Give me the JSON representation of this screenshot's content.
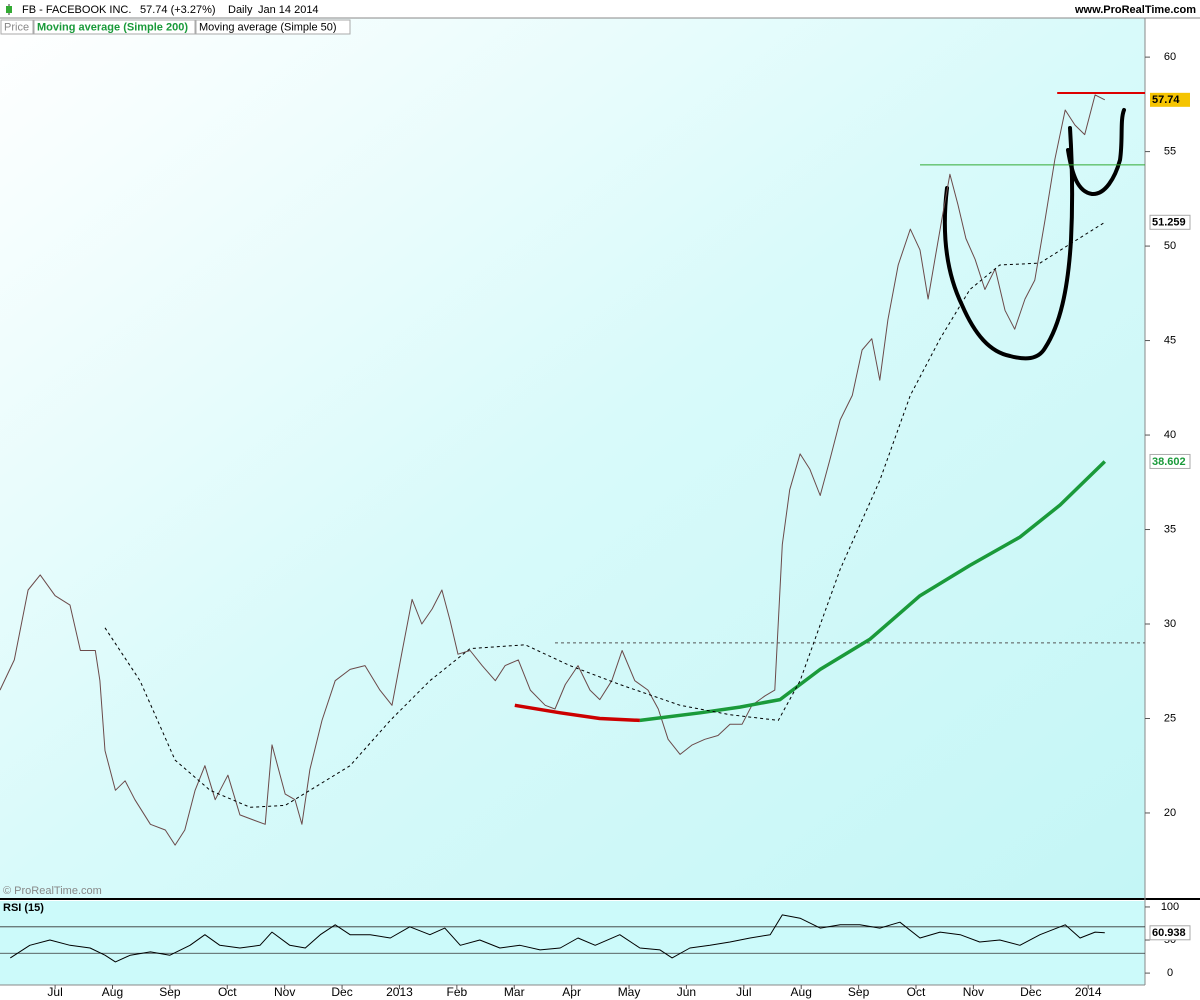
{
  "header": {
    "title": "FB - FACEBOOK INC.",
    "quote": "57.74 (+3.27%)",
    "period": "Daily",
    "date": "Jan 14 2014",
    "site": "www.ProRealTime.com",
    "watermark": "© ProRealTime.com"
  },
  "chart_data": [
    {
      "type": "line",
      "xlim": [
        -0.96,
        18.99
      ],
      "ylim": [
        15.5,
        62.07
      ],
      "yticks": [
        20,
        25,
        30,
        35,
        40,
        45,
        50,
        55,
        60
      ],
      "series": [
        {
          "name": "Price",
          "color": "#6b4a4a",
          "x": [
            -0.96,
            -0.71,
            -0.47,
            -0.26,
            0,
            0.26,
            0.44,
            0.7,
            0.78,
            0.87,
            1.05,
            1.22,
            1.39,
            1.66,
            1.92,
            2.09,
            2.26,
            2.44,
            2.61,
            2.79,
            3.01,
            3.22,
            3.48,
            3.66,
            3.78,
            4.01,
            4.18,
            4.3,
            4.44,
            4.65,
            4.88,
            5.14,
            5.4,
            5.66,
            5.87,
            6.05,
            6.22,
            6.39,
            6.57,
            6.74,
            6.88,
            7.02,
            7.23,
            7.44,
            7.67,
            7.84,
            8.07,
            8.28,
            8.54,
            8.71,
            8.89,
            9.11,
            9.32,
            9.49,
            9.7,
            9.88,
            10.1,
            10.33,
            10.51,
            10.68,
            10.89,
            11.1,
            11.32,
            11.55,
            11.76,
            11.97,
            12.14,
            12.37,
            12.54,
            12.67,
            12.8,
            12.98,
            13.15,
            13.33,
            13.5,
            13.68,
            13.89,
            14.06,
            14.23,
            14.37,
            14.51,
            14.69,
            14.9,
            15.07,
            15.21,
            15.33,
            15.45,
            15.59,
            15.73,
            15.87,
            16.03,
            16.2,
            16.38,
            16.55,
            16.72,
            16.9,
            17.07,
            17.25,
            17.42,
            17.6,
            17.77,
            17.94,
            18.12,
            18.29
          ],
          "values": [
            26.5,
            28.1,
            31.8,
            32.6,
            31.5,
            31.0,
            28.6,
            28.6,
            27.0,
            23.3,
            21.2,
            21.7,
            20.7,
            19.4,
            19.1,
            18.3,
            19.1,
            21.2,
            22.5,
            20.7,
            22.0,
            19.9,
            19.6,
            19.4,
            23.6,
            21.0,
            20.7,
            19.4,
            22.3,
            24.9,
            27.0,
            27.6,
            27.8,
            26.5,
            25.7,
            28.6,
            31.3,
            30.0,
            30.8,
            31.8,
            30.2,
            28.4,
            28.6,
            27.8,
            27.0,
            27.8,
            28.1,
            26.5,
            25.7,
            25.5,
            26.8,
            27.8,
            26.5,
            26.0,
            27.0,
            28.6,
            27.0,
            26.5,
            25.5,
            23.9,
            23.1,
            23.6,
            23.9,
            24.1,
            24.7,
            24.7,
            25.7,
            26.2,
            26.5,
            34.2,
            37.1,
            39.0,
            38.2,
            36.8,
            38.7,
            40.8,
            42.1,
            44.5,
            45.1,
            42.9,
            46.1,
            49.0,
            50.9,
            49.8,
            47.2,
            49.3,
            51.4,
            53.8,
            52.2,
            50.4,
            49.3,
            47.7,
            48.8,
            46.6,
            45.6,
            47.2,
            48.2,
            51.4,
            54.6,
            57.2,
            56.4,
            55.9,
            58.0,
            57.74
          ]
        },
        {
          "name": "Moving average (Simple 200)",
          "color": "#1a9a3a",
          "color_falling": "#cc0000",
          "width": 3.5,
          "x": [
            8.01,
            8.8,
            9.49,
            10.19,
            11.24,
            11.93,
            12.63,
            13.33,
            14.2,
            15.07,
            15.94,
            16.81,
            17.51,
            18.29
          ],
          "values": [
            25.7,
            25.3,
            25.0,
            24.9,
            25.3,
            25.6,
            26.0,
            27.6,
            29.2,
            31.5,
            33.1,
            34.6,
            36.3,
            38.602
          ]
        },
        {
          "name": "Moving average (Simple 50)",
          "color": "#000000",
          "dashed": true,
          "width": 1,
          "x": [
            0.87,
            1.48,
            2.09,
            2.7,
            3.4,
            4.01,
            4.44,
            5.14,
            5.84,
            6.53,
            7.23,
            8.19,
            8.97,
            9.84,
            10.89,
            11.76,
            12.6,
            12.98,
            13.68,
            14.37,
            14.9,
            15.42,
            15.94,
            16.46,
            17.16,
            17.68,
            18.29
          ],
          "values": [
            29.8,
            27.0,
            22.8,
            21.2,
            20.3,
            20.4,
            21.2,
            22.5,
            24.9,
            27.0,
            28.7,
            28.9,
            27.8,
            26.8,
            25.7,
            25.2,
            24.9,
            27.0,
            32.9,
            37.6,
            42.1,
            45.1,
            47.7,
            49.0,
            49.1,
            50.1,
            51.259
          ]
        }
      ],
      "levels": [
        {
          "value": 58.1,
          "x_from": 17.46,
          "color": "#dd0000",
          "width": 2
        },
        {
          "value": 54.3,
          "x_from": 15.07,
          "color": "#33aa33",
          "width": 1
        },
        {
          "value": 29.0,
          "x_from": 8.71,
          "color": "#555555",
          "width": 1,
          "dashed": true
        }
      ]
    },
    {
      "type": "line",
      "title": "RSI (15)",
      "xlim": [
        -0.96,
        18.99
      ],
      "ylim": [
        -18,
        109
      ],
      "yticks": [
        0,
        50,
        100
      ],
      "levels": [
        70,
        30
      ],
      "xticks": [
        {
          "value": 0,
          "label": "Jul"
        },
        {
          "value": 1,
          "label": "Aug"
        },
        {
          "value": 2,
          "label": "Sep"
        },
        {
          "value": 3,
          "label": "Oct"
        },
        {
          "value": 4,
          "label": "Nov"
        },
        {
          "value": 5,
          "label": "Dec"
        },
        {
          "value": 6,
          "label": "2013"
        },
        {
          "value": 7,
          "label": "Feb"
        },
        {
          "value": 8,
          "label": "Mar"
        },
        {
          "value": 9,
          "label": "Apr"
        },
        {
          "value": 10,
          "label": "May"
        },
        {
          "value": 11,
          "label": "Jun"
        },
        {
          "value": 12,
          "label": "Jul"
        },
        {
          "value": 13,
          "label": "Aug"
        },
        {
          "value": 14,
          "label": "Sep"
        },
        {
          "value": 15,
          "label": "Oct"
        },
        {
          "value": 16,
          "label": "Nov"
        },
        {
          "value": 17,
          "label": "Dec"
        },
        {
          "value": 18,
          "label": "2014"
        }
      ],
      "series": [
        {
          "color": "#000000",
          "x": [
            -0.78,
            -0.44,
            -0.09,
            0.26,
            0.61,
            0.87,
            1.05,
            1.31,
            1.66,
            2.0,
            2.35,
            2.61,
            2.87,
            3.22,
            3.57,
            3.78,
            4.09,
            4.36,
            4.62,
            4.88,
            5.14,
            5.49,
            5.84,
            6.18,
            6.53,
            6.79,
            7.06,
            7.4,
            7.75,
            8.1,
            8.45,
            8.8,
            9.11,
            9.41,
            9.84,
            10.19,
            10.54,
            10.75,
            11.06,
            11.41,
            11.76,
            12.11,
            12.46,
            12.67,
            12.98,
            13.33,
            13.68,
            14.02,
            14.37,
            14.72,
            15.07,
            15.42,
            15.77,
            16.11,
            16.46,
            16.81,
            17.16,
            17.6,
            17.86,
            18.12,
            18.29
          ],
          "values": [
            23,
            42,
            50,
            42,
            38,
            27,
            17,
            27,
            32,
            27,
            42,
            58,
            42,
            38,
            42,
            62,
            42,
            38,
            58,
            73,
            58,
            58,
            53,
            70,
            58,
            68,
            42,
            50,
            38,
            42,
            35,
            38,
            53,
            42,
            58,
            38,
            35,
            23,
            38,
            42,
            47,
            53,
            58,
            88,
            83,
            68,
            73,
            73,
            68,
            77,
            53,
            62,
            58,
            47,
            50,
            42,
            58,
            73,
            53,
            62,
            60.938
          ]
        }
      ]
    }
  ]
}
